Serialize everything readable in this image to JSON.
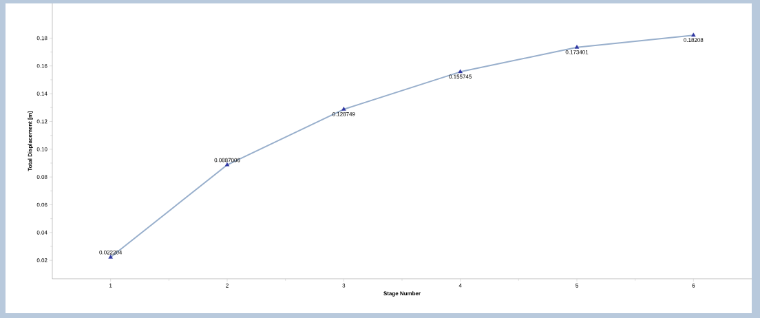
{
  "chart_data": {
    "type": "line",
    "xlabel": "Stage Number",
    "ylabel": "Total Displacement [m]",
    "x": [
      1,
      2,
      3,
      4,
      5,
      6
    ],
    "series": [
      {
        "color": "#98afcc",
        "values": [
          0.022204,
          0.0887006,
          0.128749,
          0.155745,
          0.173401,
          0.18208
        ]
      }
    ],
    "xlim": [
      0.5,
      6.5
    ],
    "xticks": [
      1,
      2,
      3,
      4,
      5,
      6
    ],
    "ylim": [
      0.0067,
      0.205
    ],
    "yticks": [
      {
        "value": 0.02,
        "label": "0.02"
      },
      {
        "value": 0.04,
        "label": "0.04"
      },
      {
        "value": 0.06,
        "label": "0.06"
      },
      {
        "value": 0.08,
        "label": "0.08"
      },
      {
        "value": 0.1,
        "label": "0.10"
      },
      {
        "value": 0.12,
        "label": "0.12"
      },
      {
        "value": 0.14,
        "label": "0.14"
      },
      {
        "value": 0.16,
        "label": "0.16"
      },
      {
        "value": 0.18,
        "label": "0.18"
      }
    ],
    "marker": "triangle",
    "line_style": "solid",
    "data_labels": true
  }
}
